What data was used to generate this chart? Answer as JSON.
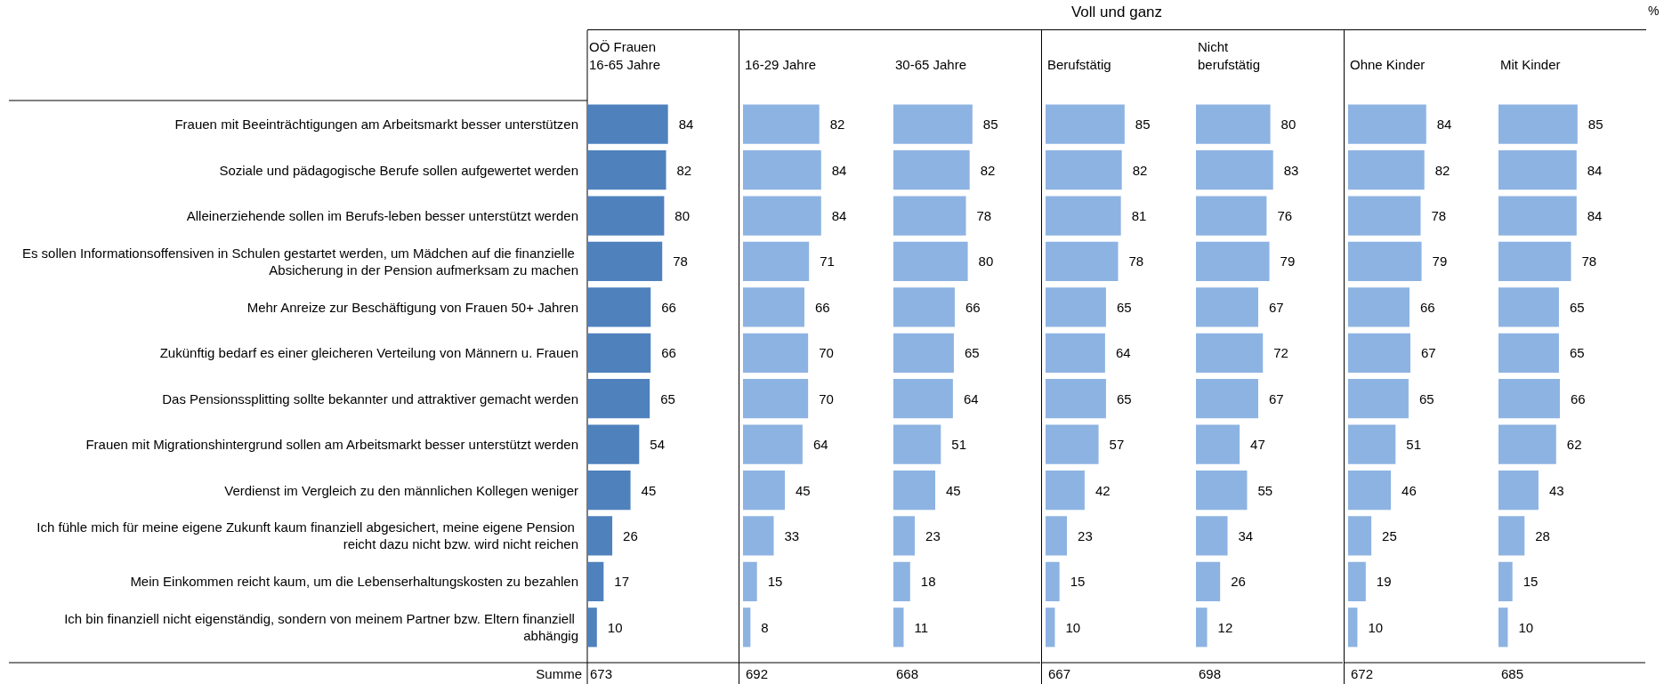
{
  "chart_data": [
    {
      "type": "bar",
      "orientation": "horizontal",
      "title": "OÖ Frauen 16-65 Jahre",
      "tick_labels": "y",
      "data_labels": true,
      "color": "#4f81bd",
      "categories": [
        "Frauen mit Beeinträchtigungen am Arbeitsmarkt besser unterstützen",
        "Soziale und pädagogische Berufe sollen aufgewertet werden",
        "Alleinerziehende sollen im Berufs-leben besser unterstützt werden",
        "Es sollen Informationsoffensiven in Schulen gestartet werden, um Mädchen auf die finanzielle Absicherung in der Pension aufmerksam zu machen",
        "Mehr Anreize zur Beschäftigung von Frauen 50+ Jahren",
        "Zukünftig bedarf es einer gleicheren Verteilung von Männern u. Frauen",
        "Das Pensionssplitting sollte bekannter und attraktiver gemacht werden",
        "Frauen mit Migrationshintergrund sollen am Arbeitsmarkt besser unterstützt werden",
        "Verdienst im Vergleich zu den männlichen Kollegen weniger",
        "Ich fühle mich für meine eigene Zukunft kaum finanziell abgesichert, meine eigene Pension reicht dazu nicht bzw. wird nicht reichen",
        "Mein Einkommen reicht kaum, um die Lebenserhaltungskosten zu bezahlen",
        "Ich bin finanziell nicht eigenständig, sondern von meinem Partner bzw. Eltern finanziell abhängig"
      ],
      "values": [
        84,
        82,
        80,
        78,
        66,
        66,
        65,
        54,
        45,
        26,
        17,
        10
      ],
      "annotations": [
        "Summe",
        "673"
      ]
    },
    {
      "type": "bar",
      "orientation": "horizontal",
      "title": "16-29 Jahre",
      "tick_labels": false,
      "data_labels": true,
      "color": "#8db3e2",
      "categories": [
        null,
        null,
        null,
        null,
        null,
        null,
        null,
        null,
        null,
        null,
        null,
        null
      ],
      "values": [
        82,
        84,
        84,
        71,
        66,
        70,
        70,
        64,
        45,
        33,
        15,
        8
      ],
      "annotations": [
        "692"
      ]
    },
    {
      "type": "bar",
      "orientation": "horizontal",
      "title": "30-65 Jahre",
      "tick_labels": false,
      "data_labels": true,
      "color": "#8db3e2",
      "categories": [
        null,
        null,
        null,
        null,
        null,
        null,
        null,
        null,
        null,
        null,
        null,
        null
      ],
      "values": [
        85,
        82,
        78,
        80,
        66,
        65,
        64,
        51,
        45,
        23,
        18,
        11
      ],
      "annotations": [
        "668"
      ]
    },
    {
      "type": "bar",
      "orientation": "horizontal",
      "title": "Berufstätig",
      "subtitle": "Voll und ganz",
      "tick_labels": false,
      "data_labels": true,
      "color": "#8db3e2",
      "categories": [
        null,
        null,
        null,
        null,
        null,
        null,
        null,
        null,
        null,
        null,
        null,
        null
      ],
      "values": [
        85,
        82,
        81,
        78,
        65,
        64,
        65,
        57,
        42,
        23,
        15,
        10
      ],
      "annotations": [
        "667"
      ]
    },
    {
      "type": "bar",
      "orientation": "horizontal",
      "title": "Nicht berufstätig",
      "tick_labels": false,
      "data_labels": true,
      "color": "#8db3e2",
      "categories": [
        null,
        null,
        null,
        null,
        null,
        null,
        null,
        null,
        null,
        null,
        null,
        null
      ],
      "values": [
        80,
        83,
        76,
        79,
        67,
        72,
        67,
        47,
        55,
        34,
        26,
        12
      ],
      "annotations": [
        "698"
      ]
    },
    {
      "type": "bar",
      "orientation": "horizontal",
      "title": "Ohne Kinder",
      "tick_labels": false,
      "data_labels": true,
      "color": "#8db3e2",
      "categories": [
        null,
        null,
        null,
        null,
        null,
        null,
        null,
        null,
        null,
        null,
        null,
        null
      ],
      "values": [
        84,
        82,
        78,
        79,
        66,
        67,
        65,
        51,
        46,
        25,
        19,
        10
      ],
      "annotations": [
        "672"
      ]
    },
    {
      "type": "bar",
      "orientation": "horizontal",
      "title": "Mit Kinder",
      "xlabel": "%",
      "tick_labels": false,
      "data_labels": true,
      "color": "#8db3e2",
      "categories": [
        null,
        null,
        null,
        null,
        null,
        null,
        null,
        null,
        null,
        null,
        null,
        null
      ],
      "values": [
        85,
        84,
        84,
        78,
        65,
        65,
        66,
        62,
        43,
        28,
        15,
        10
      ],
      "annotations": [
        "685"
      ]
    }
  ]
}
